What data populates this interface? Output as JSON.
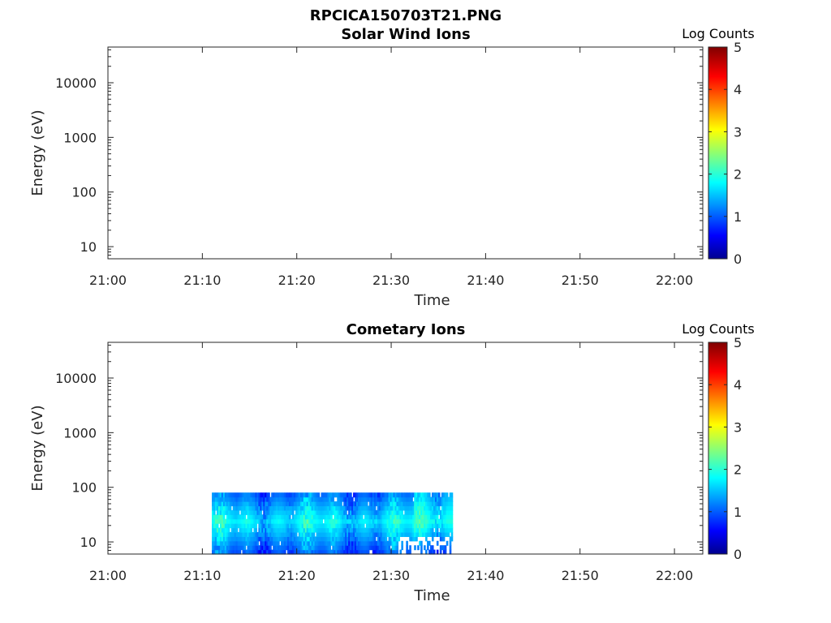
{
  "figure_title": "RPCICA150703T21.PNG",
  "chart_data": [
    {
      "type": "heatmap",
      "title": "Solar Wind Ions",
      "xlabel": "Time",
      "ylabel": "Energy (eV)",
      "y_scale": "log",
      "ylim": [
        6,
        45000
      ],
      "xlim": [
        "21:00",
        "22:03"
      ],
      "x_tick_labels": [
        "21:00",
        "21:10",
        "21:20",
        "21:30",
        "21:40",
        "21:50",
        "22:00"
      ],
      "y_tick_labels": [
        "10",
        "100",
        "1000",
        "10000"
      ],
      "colorbar": {
        "label": "Log Counts",
        "range": [
          0,
          5
        ],
        "tick_labels": [
          "0",
          "1",
          "2",
          "3",
          "4",
          "5"
        ],
        "colormap": "jet"
      },
      "data_regions": []
    },
    {
      "type": "heatmap",
      "title": "Cometary Ions",
      "xlabel": "Time",
      "ylabel": "Energy (eV)",
      "y_scale": "log",
      "ylim": [
        6,
        45000
      ],
      "xlim": [
        "21:00",
        "22:03"
      ],
      "x_tick_labels": [
        "21:00",
        "21:10",
        "21:20",
        "21:30",
        "21:40",
        "21:50",
        "22:00"
      ],
      "y_tick_labels": [
        "10",
        "100",
        "1000",
        "10000"
      ],
      "colorbar": {
        "label": "Log Counts",
        "range": [
          0,
          5
        ],
        "tick_labels": [
          "0",
          "1",
          "2",
          "3",
          "4",
          "5"
        ],
        "colormap": "jet"
      },
      "data_regions": [
        {
          "time_start": "21:11",
          "time_end": "21:36.5",
          "energy_min": 6,
          "energy_max": 80,
          "log_counts_range": [
            0.3,
            2.5
          ]
        }
      ]
    }
  ]
}
